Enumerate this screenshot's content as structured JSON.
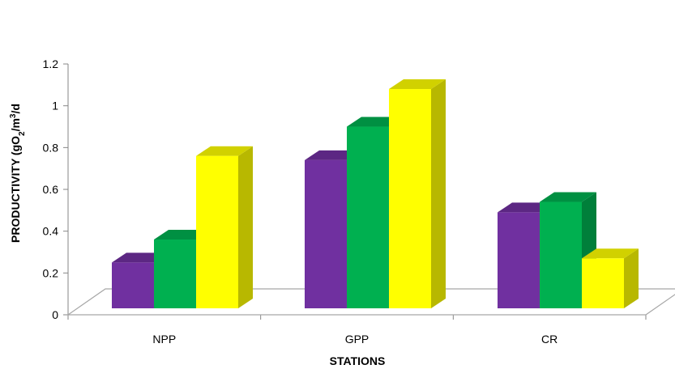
{
  "chart_data": {
    "type": "bar",
    "style": "3d-clustered-column",
    "categories": [
      "NPP",
      "GPP",
      "CR"
    ],
    "series": [
      {
        "values": [
          0.25,
          0.74,
          0.49
        ],
        "color": "#7030A0"
      },
      {
        "values": [
          0.36,
          0.9,
          0.54
        ],
        "color": "#00B050"
      },
      {
        "values": [
          0.76,
          1.08,
          0.27
        ],
        "color": "#FFFF00"
      }
    ],
    "xlabel": "STATIONS",
    "ylabel": {
      "prefix": "PRODUCTIVITY (gO",
      "sub": "2",
      "middle": "/m",
      "sup": "3",
      "suffix": "/d"
    },
    "ylim": [
      0,
      1.2
    ],
    "yticks": [
      "0",
      "0.2",
      "0.4",
      "0.6",
      "0.8",
      "1",
      "1.2"
    ],
    "grid": false,
    "legend": "none"
  }
}
